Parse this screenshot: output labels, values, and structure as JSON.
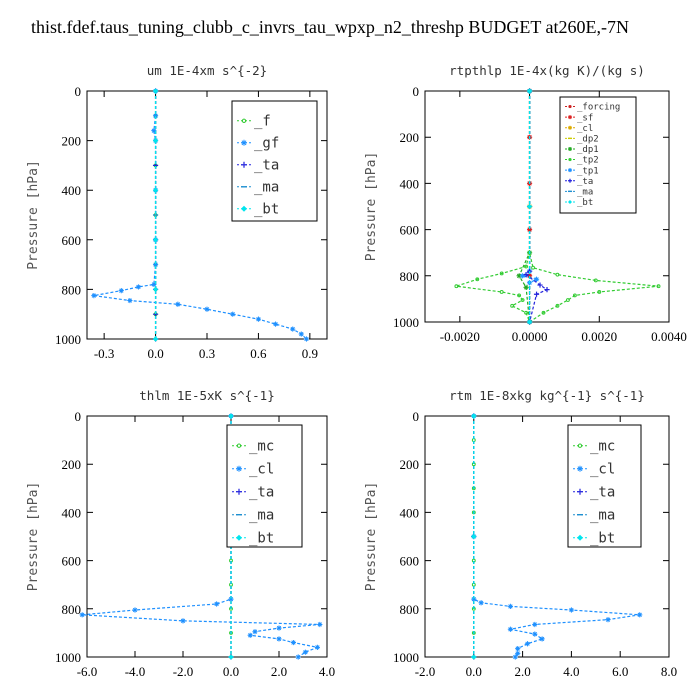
{
  "figure_title": "thist.fdef.taus_tuning_clubb_c_invrs_tau_wpxp_n2_threshp  BUDGET at260E,-7N",
  "chart_data": [
    {
      "type": "line",
      "title": "um   1E-4xm  s^{-2}",
      "ylabel": "Pressure [hPa]",
      "xlim": [
        -0.4,
        1.0
      ],
      "ylim": [
        1000,
        0
      ],
      "xticks": [
        "-0.3",
        "0.0",
        "0.3",
        "0.6",
        "0.9"
      ],
      "yticks": [
        "0",
        "200",
        "400",
        "600",
        "800",
        "1000"
      ],
      "legend_position": "top-right",
      "series": [
        {
          "name": "_f",
          "color": "#33cc33",
          "marker": "circle",
          "points": [
            [
              0.0,
              0
            ],
            [
              0.0,
              100
            ],
            [
              0.0,
              200
            ],
            [
              0.0,
              300
            ],
            [
              0.0,
              400
            ],
            [
              0.0,
              500
            ],
            [
              0.0,
              600
            ],
            [
              0.0,
              700
            ],
            [
              0.0,
              800
            ],
            [
              0.0,
              900
            ],
            [
              0.0,
              1000
            ]
          ]
        },
        {
          "name": "_gf",
          "color": "#1e90ff",
          "marker": "star",
          "points": [
            [
              0.0,
              0
            ],
            [
              0.0,
              100
            ],
            [
              -0.01,
              160
            ],
            [
              0.0,
              200
            ],
            [
              0.0,
              400
            ],
            [
              0.0,
              600
            ],
            [
              0.0,
              700
            ],
            [
              -0.01,
              780
            ],
            [
              -0.1,
              790
            ],
            [
              -0.2,
              805
            ],
            [
              -0.36,
              825
            ],
            [
              -0.15,
              845
            ],
            [
              0.13,
              860
            ],
            [
              0.3,
              880
            ],
            [
              0.45,
              900
            ],
            [
              0.6,
              920
            ],
            [
              0.7,
              940
            ],
            [
              0.8,
              960
            ],
            [
              0.85,
              980
            ],
            [
              0.88,
              1000
            ]
          ]
        },
        {
          "name": "_ta",
          "color": "#2222dd",
          "marker": "plus",
          "points": [
            [
              0.0,
              0
            ],
            [
              0.0,
              300
            ],
            [
              0.0,
              600
            ],
            [
              0.0,
              800
            ],
            [
              0.0,
              900
            ],
            [
              0.0,
              1000
            ]
          ]
        },
        {
          "name": "_ma",
          "color": "#1e8fd0",
          "marker": "dash",
          "points": [
            [
              0.0,
              0
            ],
            [
              0.0,
              500
            ],
            [
              0.0,
              1000
            ]
          ]
        },
        {
          "name": "_bt",
          "color": "#00e5ee",
          "marker": "diamond",
          "points": [
            [
              0.0,
              0
            ],
            [
              0.0,
              200
            ],
            [
              0.0,
              400
            ],
            [
              0.0,
              600
            ],
            [
              0.0,
              800
            ],
            [
              0.0,
              1000
            ]
          ]
        }
      ]
    },
    {
      "type": "line",
      "title": "rtpthlp   1E-4x(kg K)/(kg s)",
      "ylabel": "Pressure [hPa]",
      "xlim": [
        -0.003,
        0.004
      ],
      "ylim": [
        1000,
        0
      ],
      "xticks": [
        "-0.0020",
        "0.0000",
        "0.0020",
        "0.0040"
      ],
      "yticks": [
        "0",
        "200",
        "400",
        "600",
        "800",
        "1000"
      ],
      "legend_position": "top-right",
      "series": [
        {
          "name": "_forcing",
          "color": "#cc2222",
          "marker": "circle",
          "points": [
            [
              0.0,
              0
            ],
            [
              0.0,
              200
            ],
            [
              0.0,
              400
            ],
            [
              0.0,
              600
            ],
            [
              0.0,
              800
            ],
            [
              0.0,
              1000
            ]
          ]
        },
        {
          "name": "_sf",
          "color": "#dd2222",
          "marker": "star",
          "points": [
            [
              0.0,
              0
            ],
            [
              0.0,
              200
            ],
            [
              0.0,
              400
            ],
            [
              0.0,
              600
            ],
            [
              0.0,
              800
            ],
            [
              0.0,
              1000
            ]
          ]
        },
        {
          "name": "_cl",
          "color": "#ddaa00",
          "marker": "star",
          "points": [
            [
              0.0,
              0
            ],
            [
              0.0,
              500
            ],
            [
              0.0,
              1000
            ]
          ]
        },
        {
          "name": "_dp2",
          "color": "#cccc00",
          "marker": "dash",
          "points": [
            [
              0.0,
              0
            ],
            [
              0.0,
              500
            ],
            [
              0.0,
              1000
            ]
          ]
        },
        {
          "name": "_dp1",
          "color": "#22aa22",
          "marker": "star",
          "points": [
            [
              0.0,
              0
            ],
            [
              0.0,
              700
            ],
            [
              -0.0003,
              800
            ],
            [
              -0.0001,
              850
            ],
            [
              0.0,
              1000
            ]
          ]
        },
        {
          "name": "_tp2",
          "color": "#33cc33",
          "marker": "circle",
          "points": [
            [
              0.0,
              0
            ],
            [
              0.0,
              700
            ],
            [
              -0.0001,
              760
            ],
            [
              -0.0008,
              790
            ],
            [
              -0.0015,
              815
            ],
            [
              -0.0021,
              845
            ],
            [
              -0.0008,
              870
            ],
            [
              -0.0003,
              885
            ],
            [
              -0.0002,
              905
            ],
            [
              -0.0005,
              930
            ],
            [
              -0.0001,
              960
            ],
            [
              0.0,
              1000
            ],
            [
              0.0004,
              960
            ],
            [
              0.0008,
              930
            ],
            [
              0.0011,
              905
            ],
            [
              0.0013,
              885
            ],
            [
              0.002,
              870
            ],
            [
              0.0037,
              845
            ],
            [
              0.0019,
              820
            ],
            [
              0.0008,
              795
            ],
            [
              0.0001,
              765
            ],
            [
              0.0,
              700
            ]
          ]
        },
        {
          "name": "_tp1",
          "color": "#1e90ff",
          "marker": "star",
          "points": [
            [
              0.0,
              0
            ],
            [
              0.0,
              780
            ],
            [
              -0.0002,
              800
            ],
            [
              0.0002,
              815
            ],
            [
              0.0,
              830
            ],
            [
              0.0,
              1000
            ]
          ]
        },
        {
          "name": "_ta",
          "color": "#2222dd",
          "marker": "plus",
          "points": [
            [
              0.0,
              0
            ],
            [
              0.0,
              780
            ],
            [
              -0.0001,
              795
            ],
            [
              0.0003,
              840
            ],
            [
              0.0005,
              860
            ],
            [
              0.0002,
              880
            ],
            [
              0.0,
              1000
            ]
          ]
        },
        {
          "name": "_ma",
          "color": "#1e8fd0",
          "marker": "dash",
          "points": [
            [
              0.0,
              0
            ],
            [
              0.0,
              500
            ],
            [
              0.0,
              1000
            ]
          ]
        },
        {
          "name": "_bt",
          "color": "#00e5ee",
          "marker": "diamond",
          "points": [
            [
              0.0,
              0
            ],
            [
              0.0,
              500
            ],
            [
              0.0,
              1000
            ]
          ]
        }
      ]
    },
    {
      "type": "line",
      "title": "thlm   1E-5xK  s^{-1}",
      "ylabel": "Pressure [hPa]",
      "xlim": [
        -6.0,
        4.0
      ],
      "ylim": [
        1000,
        0
      ],
      "xticks": [
        "-6.0",
        "-4.0",
        "-2.0",
        "0.0",
        "2.0",
        "4.0"
      ],
      "yticks": [
        "0",
        "200",
        "400",
        "600",
        "800",
        "1000"
      ],
      "legend_position": "top-right",
      "series": [
        {
          "name": "_mc",
          "color": "#33cc33",
          "marker": "circle",
          "points": [
            [
              0.0,
              0
            ],
            [
              0.0,
              100
            ],
            [
              0.0,
              200
            ],
            [
              0.0,
              300
            ],
            [
              0.0,
              400
            ],
            [
              0.0,
              500
            ],
            [
              0.0,
              600
            ],
            [
              0.0,
              700
            ],
            [
              0.0,
              800
            ],
            [
              0.0,
              900
            ],
            [
              0.0,
              1000
            ]
          ]
        },
        {
          "name": "_cl",
          "color": "#1e90ff",
          "marker": "star",
          "points": [
            [
              0.0,
              0
            ],
            [
              0.0,
              500
            ],
            [
              0.0,
              760
            ],
            [
              -0.6,
              780
            ],
            [
              -4.0,
              805
            ],
            [
              -6.2,
              825
            ],
            [
              -2.0,
              850
            ],
            [
              3.7,
              865
            ],
            [
              2.0,
              880
            ],
            [
              1.0,
              895
            ],
            [
              0.8,
              910
            ],
            [
              2.0,
              925
            ],
            [
              2.6,
              940
            ],
            [
              3.6,
              960
            ],
            [
              3.1,
              980
            ],
            [
              2.8,
              1000
            ]
          ]
        },
        {
          "name": "_ta",
          "color": "#2222dd",
          "marker": "plus",
          "points": [
            [
              0.0,
              0
            ],
            [
              0.0,
              500
            ],
            [
              0.0,
              1000
            ]
          ]
        },
        {
          "name": "_ma",
          "color": "#1e8fd0",
          "marker": "dash",
          "points": [
            [
              0.0,
              0
            ],
            [
              0.0,
              500
            ],
            [
              0.0,
              1000
            ]
          ]
        },
        {
          "name": "_bt",
          "color": "#00e5ee",
          "marker": "diamond",
          "points": [
            [
              0.0,
              0
            ],
            [
              0.0,
              500
            ],
            [
              0.0,
              1000
            ]
          ]
        }
      ]
    },
    {
      "type": "line",
      "title": "rtm   1E-8xkg  kg^{-1}  s^{-1}",
      "ylabel": "Pressure [hPa]",
      "xlim": [
        -2.0,
        8.0
      ],
      "ylim": [
        1000,
        0
      ],
      "xticks": [
        "-2.0",
        "0.0",
        "2.0",
        "4.0",
        "6.0",
        "8.0"
      ],
      "yticks": [
        "0",
        "200",
        "400",
        "600",
        "800",
        "1000"
      ],
      "legend_position": "top-right",
      "series": [
        {
          "name": "_mc",
          "color": "#33cc33",
          "marker": "circle",
          "points": [
            [
              0.0,
              0
            ],
            [
              0.0,
              100
            ],
            [
              0.0,
              200
            ],
            [
              0.0,
              300
            ],
            [
              0.0,
              400
            ],
            [
              0.0,
              500
            ],
            [
              0.0,
              600
            ],
            [
              0.0,
              700
            ],
            [
              0.0,
              800
            ],
            [
              0.0,
              900
            ],
            [
              0.0,
              1000
            ]
          ]
        },
        {
          "name": "_cl",
          "color": "#1e90ff",
          "marker": "star",
          "points": [
            [
              0.0,
              0
            ],
            [
              0.0,
              500
            ],
            [
              0.0,
              760
            ],
            [
              0.3,
              775
            ],
            [
              1.5,
              790
            ],
            [
              4.0,
              805
            ],
            [
              6.8,
              825
            ],
            [
              5.5,
              845
            ],
            [
              2.5,
              865
            ],
            [
              1.5,
              885
            ],
            [
              2.5,
              905
            ],
            [
              2.8,
              925
            ],
            [
              2.2,
              945
            ],
            [
              1.8,
              965
            ],
            [
              1.8,
              985
            ],
            [
              1.7,
              1000
            ]
          ]
        },
        {
          "name": "_ta",
          "color": "#2222dd",
          "marker": "plus",
          "points": [
            [
              0.0,
              0
            ],
            [
              0.0,
              500
            ],
            [
              0.0,
              1000
            ]
          ]
        },
        {
          "name": "_ma",
          "color": "#1e8fd0",
          "marker": "dash",
          "points": [
            [
              0.0,
              0
            ],
            [
              0.0,
              500
            ],
            [
              0.0,
              1000
            ]
          ]
        },
        {
          "name": "_bt",
          "color": "#00e5ee",
          "marker": "diamond",
          "points": [
            [
              0.0,
              0
            ],
            [
              0.0,
              500
            ],
            [
              0.0,
              1000
            ]
          ]
        }
      ]
    }
  ]
}
